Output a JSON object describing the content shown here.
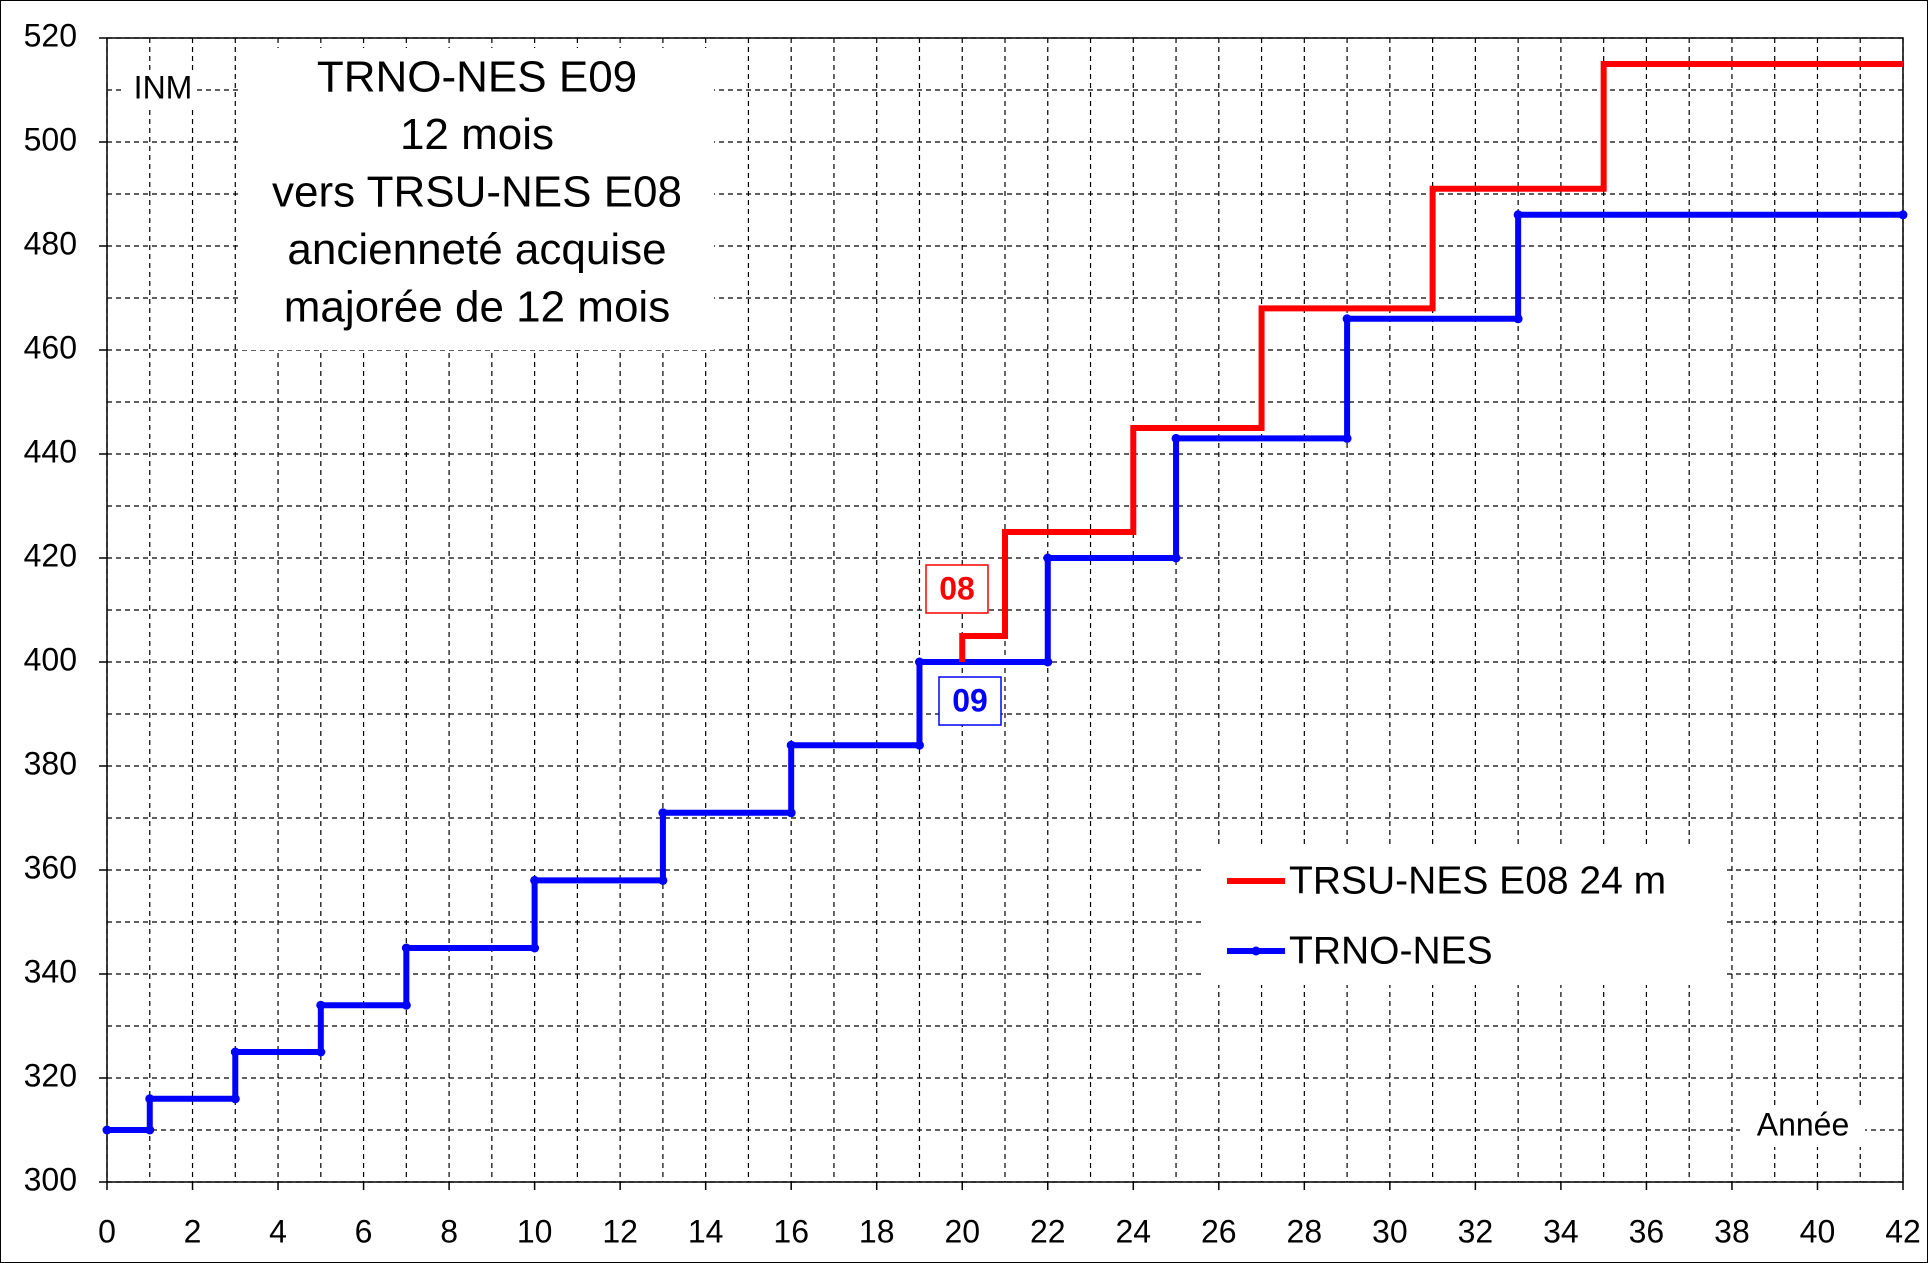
{
  "chart_data": {
    "type": "line",
    "title": [
      "TRNO-NES E09",
      "12 mois",
      "vers TRSU-NES E08",
      "ancienneté acquise",
      "majorée de 12 mois"
    ],
    "ylabel": "INM",
    "xlabel": "Année",
    "annotations": [
      {
        "text": "08",
        "color": "#ff0000"
      },
      {
        "text": "09",
        "color": "#0000ff"
      }
    ],
    "xlim": [
      0,
      42
    ],
    "xticks": [
      0,
      2,
      4,
      6,
      8,
      10,
      12,
      14,
      16,
      18,
      20,
      22,
      24,
      26,
      28,
      30,
      32,
      34,
      36,
      38,
      40,
      42
    ],
    "ylim": [
      300,
      520
    ],
    "yticks": [
      300,
      320,
      340,
      360,
      380,
      400,
      420,
      440,
      460,
      480,
      500,
      520
    ],
    "grid": true,
    "series": [
      {
        "name": "TRSU-NES E08 24 m",
        "color": "#ff0000",
        "marker": false,
        "x": [
          20,
          20,
          21,
          21,
          24,
          24,
          27,
          27,
          31,
          31,
          35,
          35,
          42
        ],
        "values": [
          400,
          405,
          405,
          425,
          425,
          445,
          445,
          468,
          468,
          491,
          491,
          515,
          515
        ]
      },
      {
        "name": "TRNO-NES",
        "color": "#0000ff",
        "marker": true,
        "x": [
          0,
          1,
          1,
          3,
          3,
          5,
          5,
          7,
          7,
          10,
          10,
          13,
          13,
          16,
          16,
          19,
          19,
          22,
          22,
          25,
          25,
          29,
          29,
          33,
          33,
          42
        ],
        "values": [
          310,
          310,
          316,
          316,
          325,
          325,
          334,
          334,
          345,
          345,
          358,
          358,
          371,
          371,
          384,
          384,
          400,
          400,
          420,
          420,
          443,
          443,
          466,
          466,
          486,
          486
        ]
      }
    ]
  }
}
